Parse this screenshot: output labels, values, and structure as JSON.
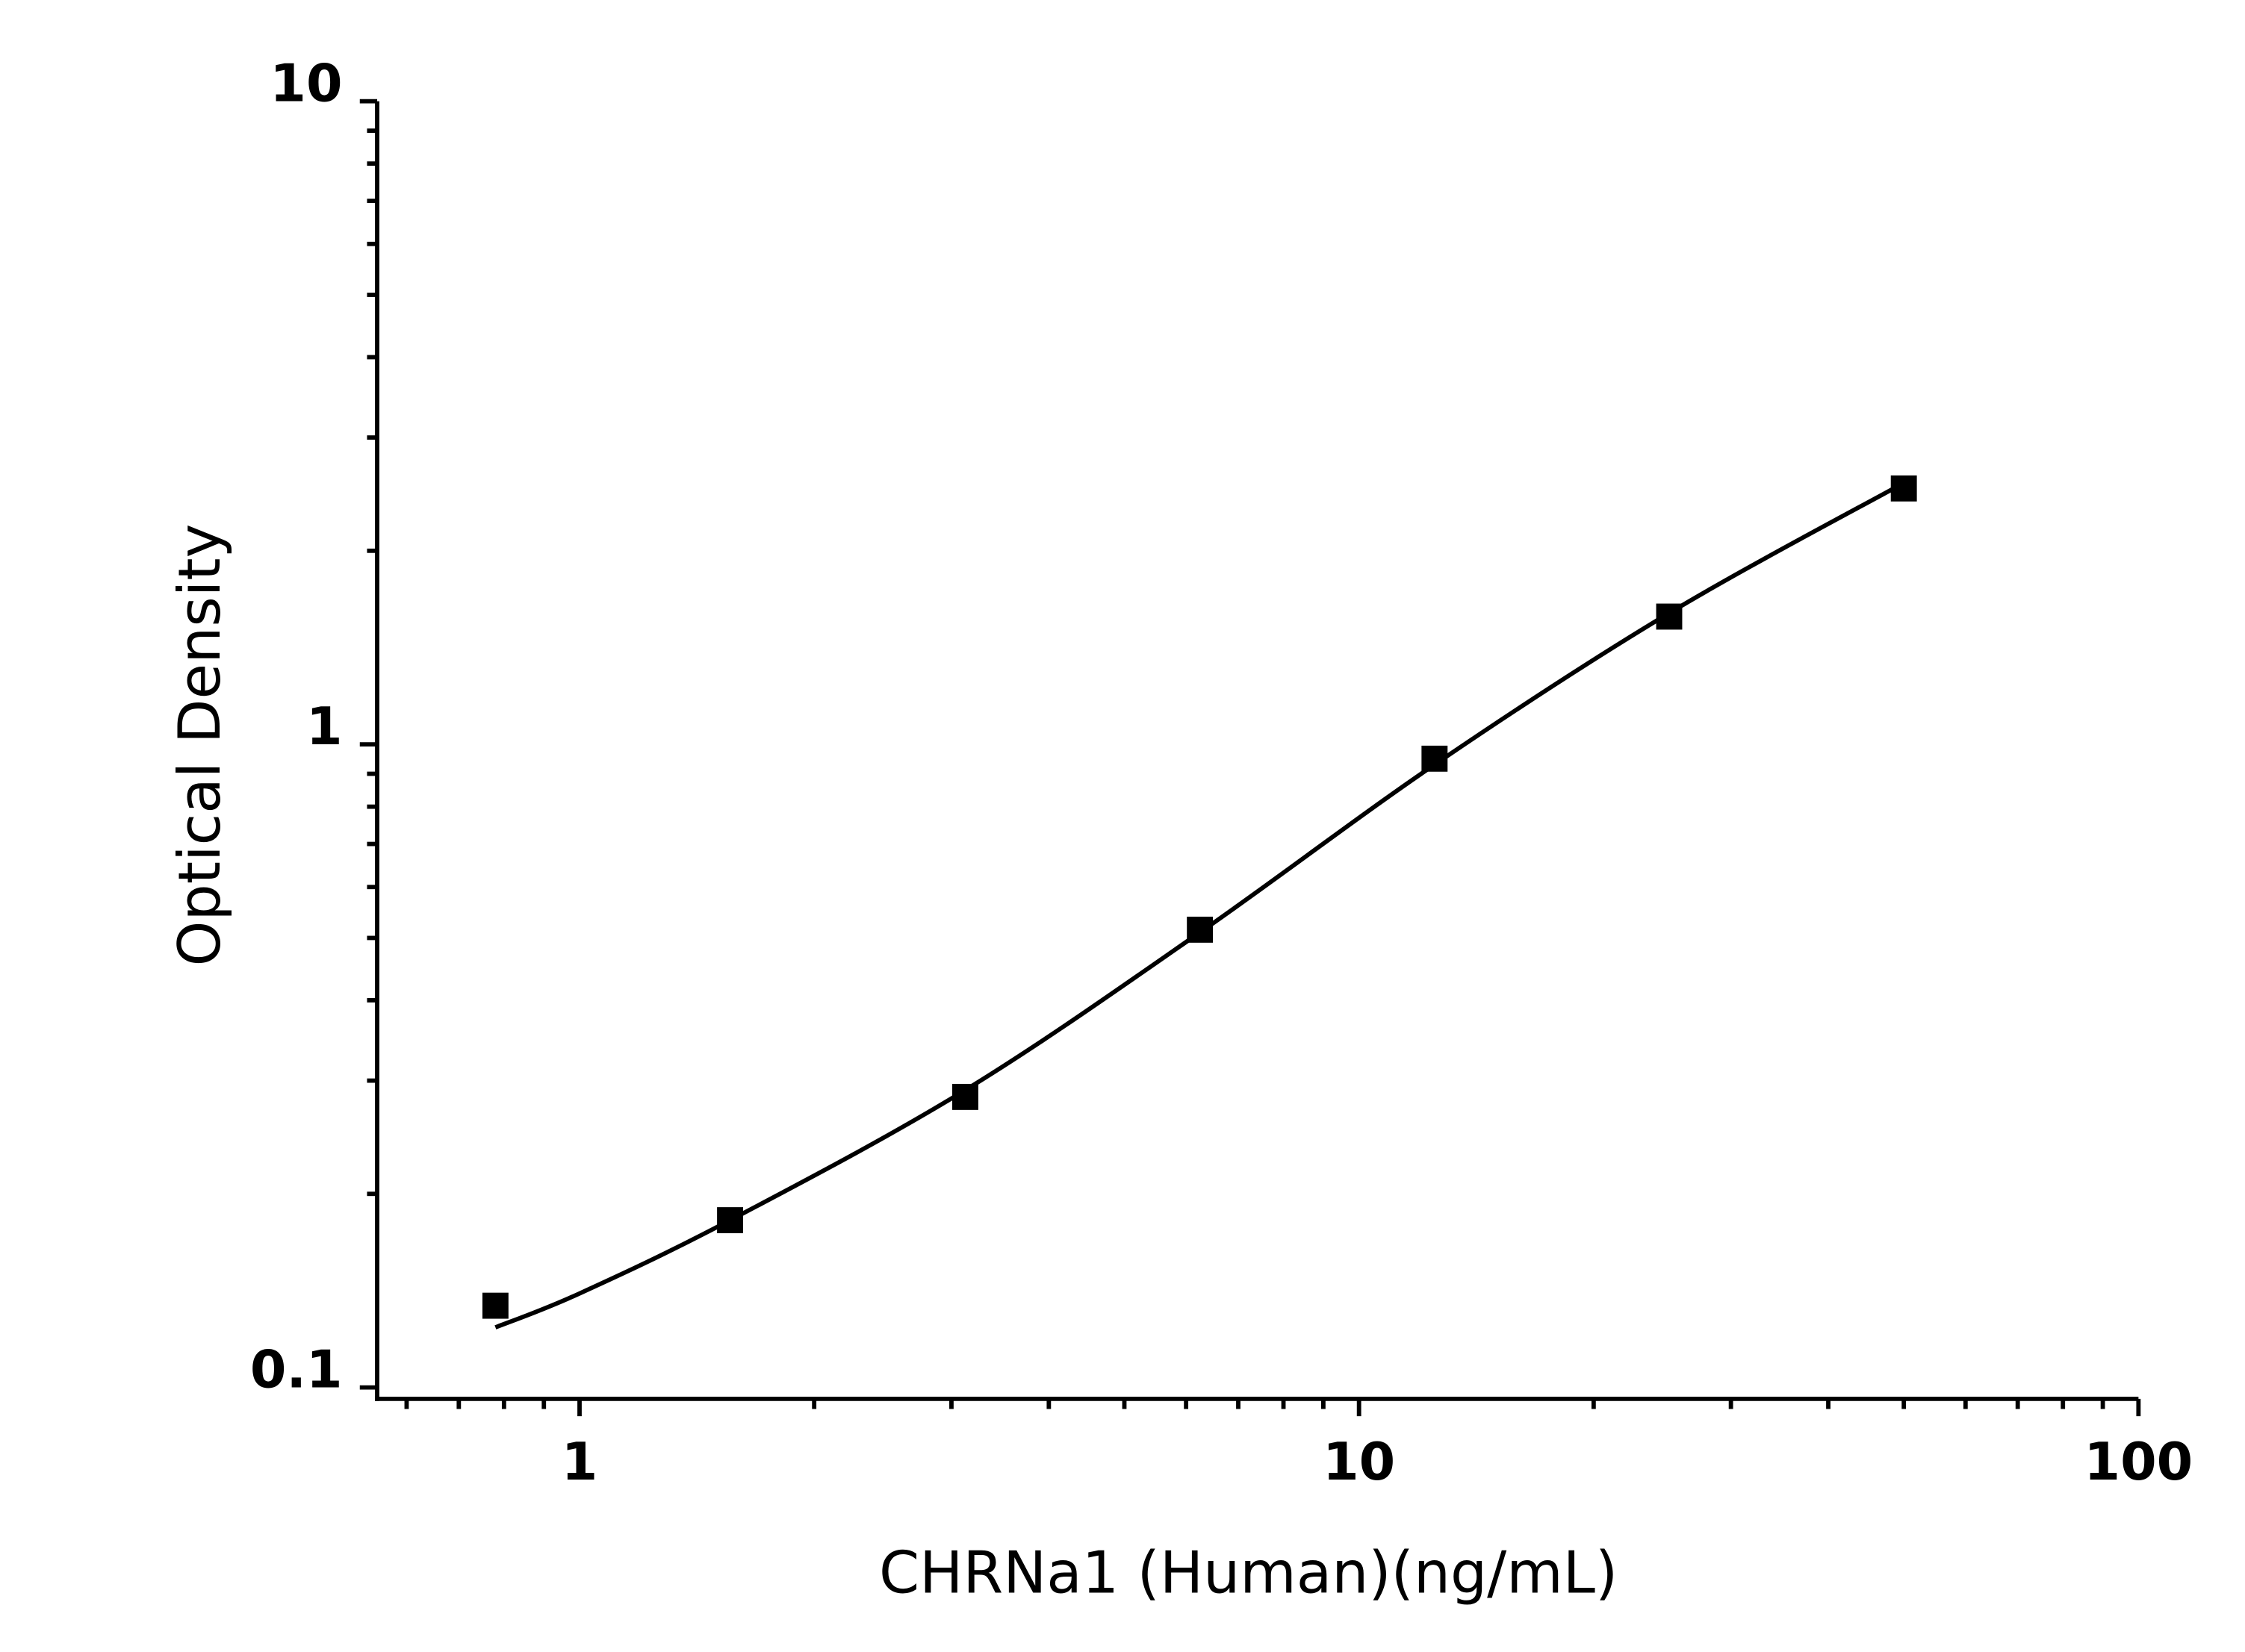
{
  "chart_data": {
    "type": "scatter",
    "x_label": "CHRNa1 (Human)(ng/mL)",
    "y_label": "Optical Density",
    "xscale": "log",
    "yscale": "log",
    "xlim": [
      0.55,
      100
    ],
    "ylim": [
      0.096,
      10
    ],
    "xticks": [
      1,
      10,
      100
    ],
    "yticks": [
      0.1,
      1,
      10
    ],
    "series": [
      {
        "mode": "markers",
        "marker": "square",
        "color": "#000000",
        "x": [
          0.78,
          1.56,
          3.125,
          6.25,
          12.5,
          25,
          50
        ],
        "values": [
          0.134,
          0.182,
          0.283,
          0.515,
          0.95,
          1.58,
          2.5
        ]
      },
      {
        "mode": "line",
        "color": "#000000",
        "x": [
          0.78,
          1,
          1.56,
          3.125,
          6.25,
          12.5,
          25,
          50
        ],
        "values": [
          0.124,
          0.14,
          0.182,
          0.29,
          0.51,
          0.93,
          1.6,
          2.55
        ]
      }
    ]
  }
}
